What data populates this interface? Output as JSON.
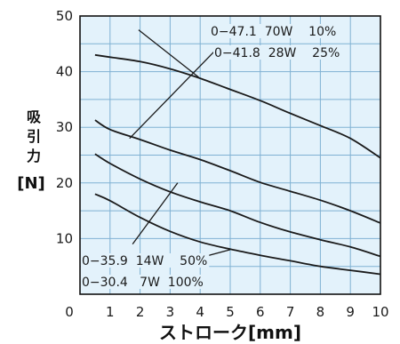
{
  "chart_data": {
    "type": "line",
    "xlabel": "ストローク[mm]",
    "ylabel_lines": [
      "吸",
      "引",
      "力",
      "[N]"
    ],
    "xlim": [
      0,
      10
    ],
    "ylim": [
      0,
      50
    ],
    "x_ticks": [
      "0",
      "1",
      "2",
      "3",
      "4",
      "5",
      "6",
      "7",
      "8",
      "9",
      "10"
    ],
    "y_ticks": [
      "10",
      "20",
      "30",
      "40",
      "50"
    ],
    "grid": true,
    "background": "#e3f2fb",
    "grid_color": "#7fb1d3",
    "series": [
      {
        "name": "0−47.1  70W    10%",
        "x": [
          0.5,
          1,
          2,
          3,
          4,
          5,
          6,
          7,
          8,
          9,
          10
        ],
        "y": [
          43,
          42.6,
          41.8,
          40.5,
          38.8,
          36.8,
          34.8,
          32.5,
          30.3,
          28,
          24.5
        ]
      },
      {
        "name": "0−41.8  28W    25%",
        "x": [
          0.5,
          1,
          2,
          3,
          4,
          5,
          6,
          7,
          8,
          9,
          10
        ],
        "y": [
          31.3,
          29.6,
          27.8,
          25.9,
          24.2,
          22.2,
          20.1,
          18.5,
          16.9,
          15,
          12.8
        ]
      },
      {
        "name": "0−35.9  14W    50%",
        "x": [
          0.5,
          1,
          2,
          3,
          4,
          5,
          6,
          7,
          8,
          9,
          10
        ],
        "y": [
          25.2,
          23.5,
          20.7,
          18.4,
          16.6,
          15,
          12.9,
          11.2,
          9.8,
          8.5,
          6.8
        ]
      },
      {
        "name": "0−30.4   7W  100%",
        "x": [
          0.5,
          1,
          2,
          3,
          4,
          5,
          6,
          7,
          8,
          9,
          10
        ],
        "y": [
          18,
          16.8,
          13.8,
          11.3,
          9.4,
          8.1,
          7,
          6,
          5,
          4.3,
          3.6
        ]
      }
    ]
  }
}
